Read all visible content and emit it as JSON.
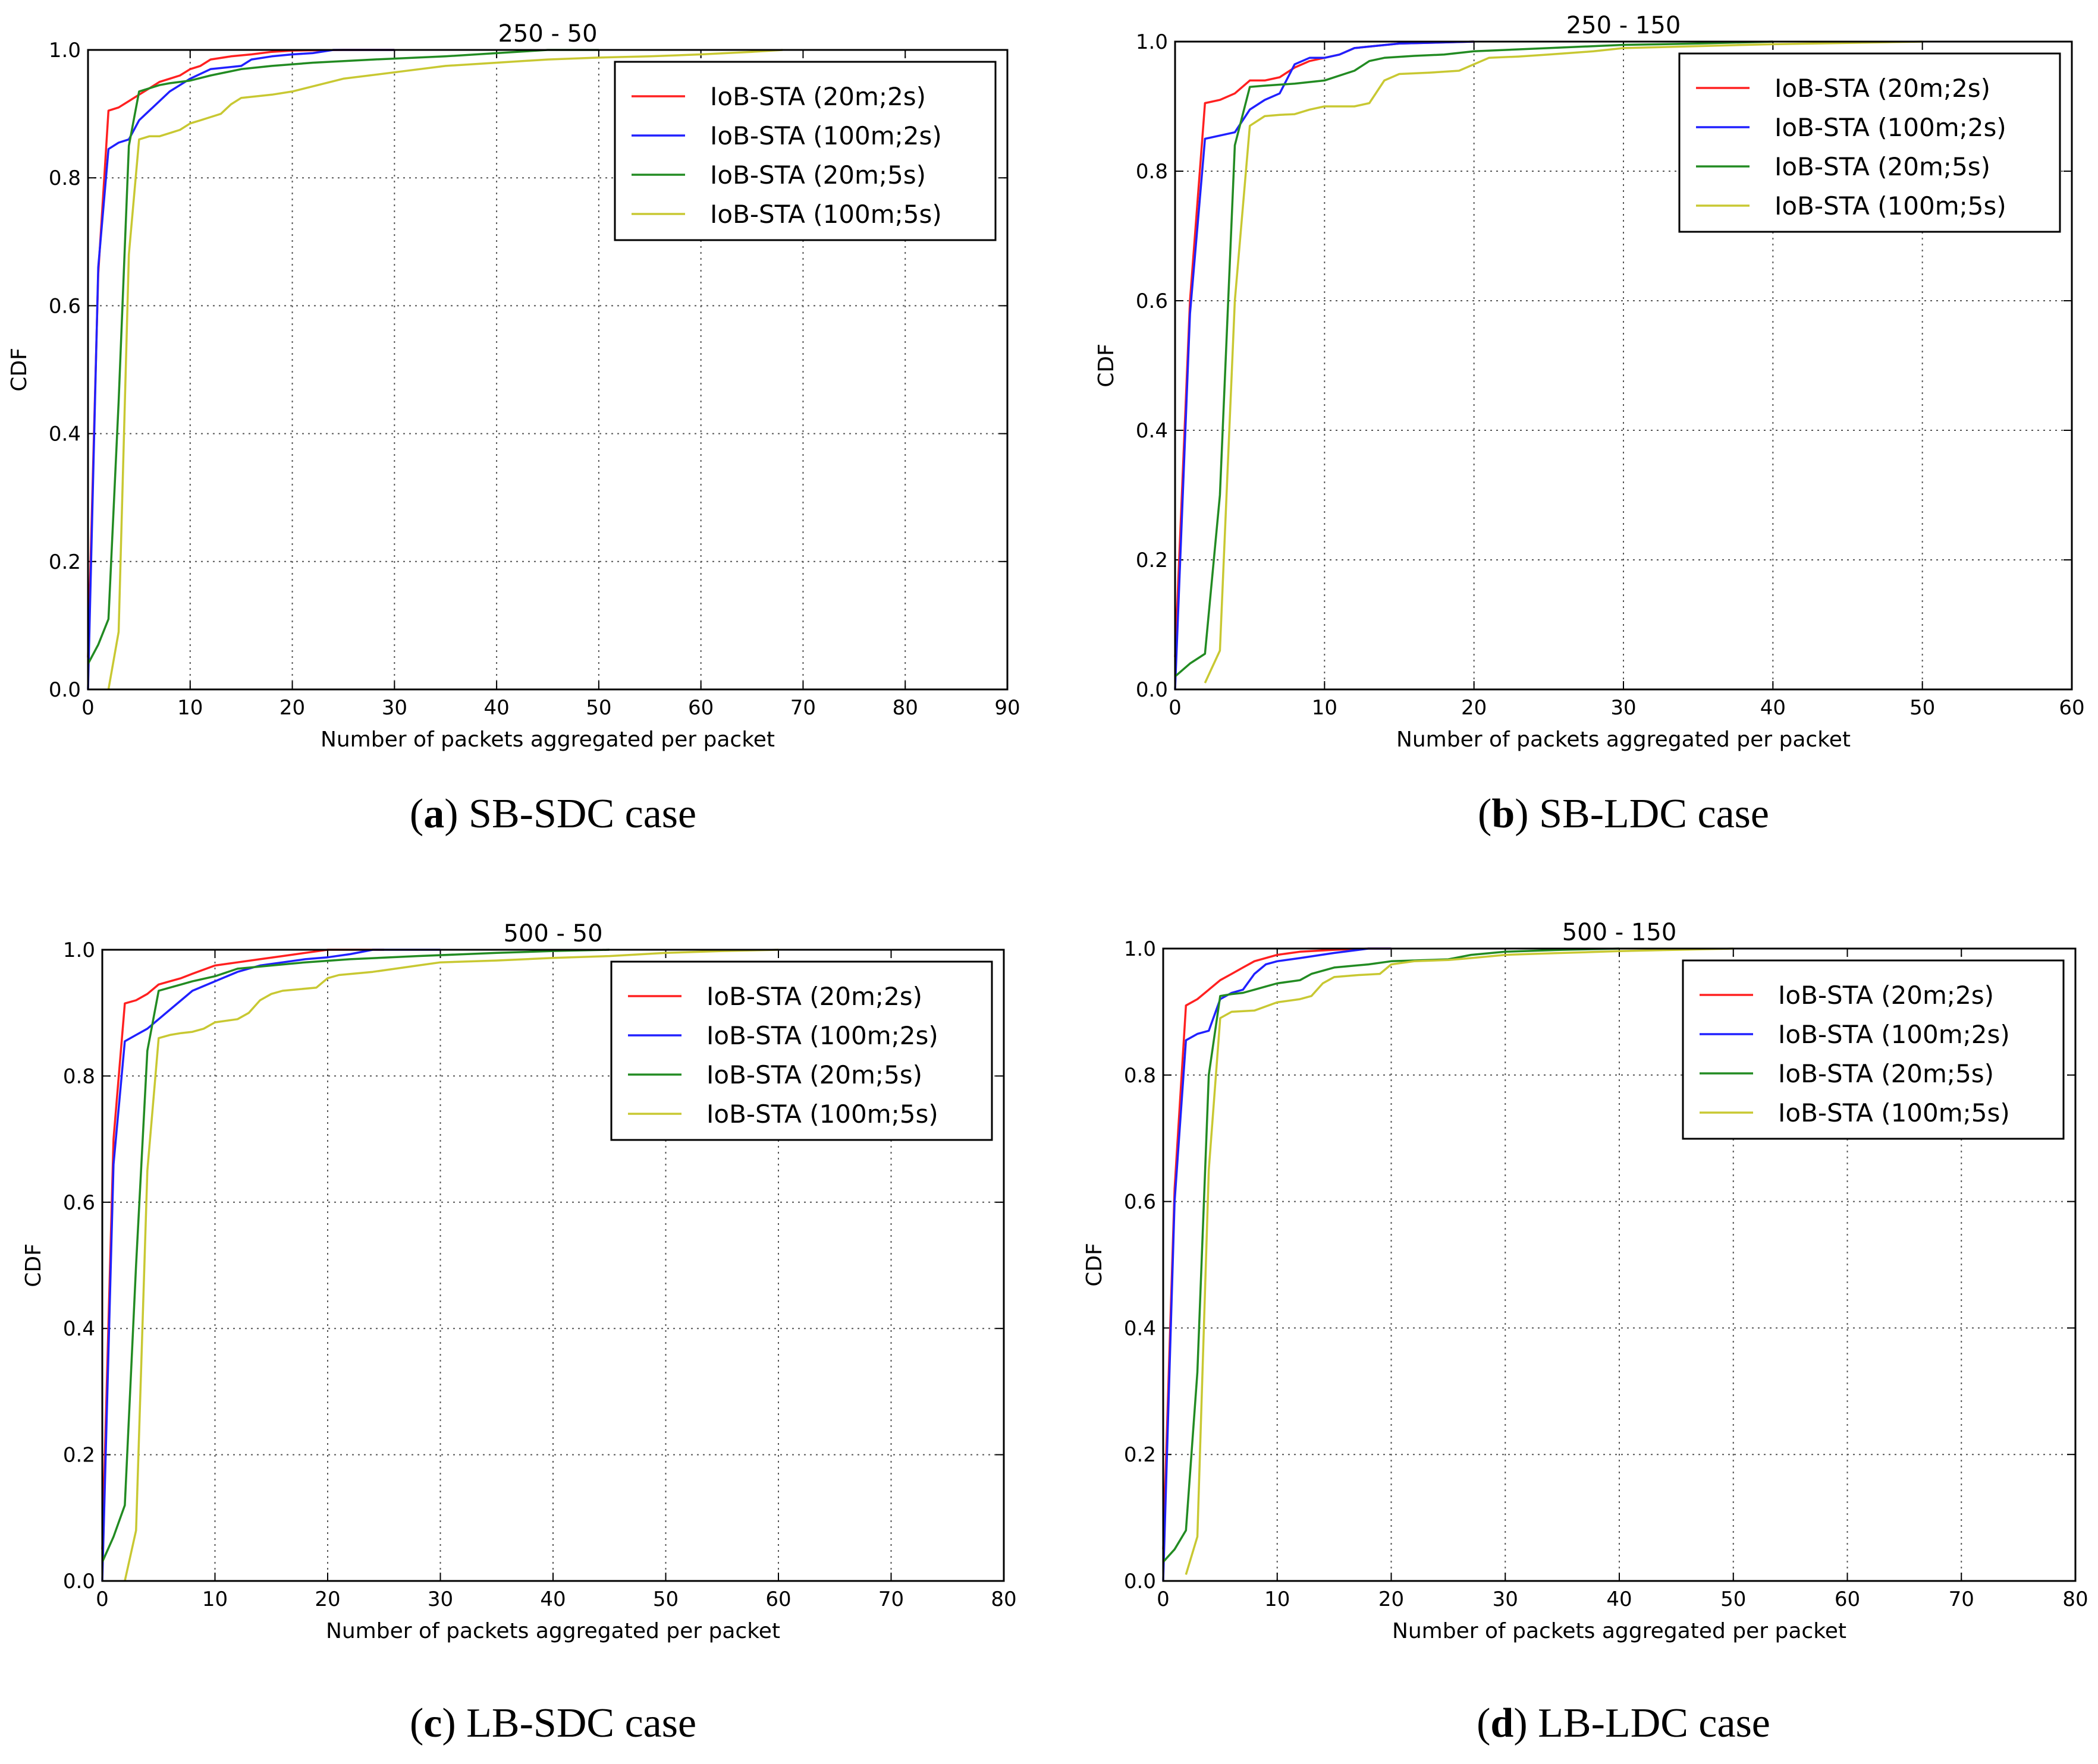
{
  "figure": {
    "colors": {
      "red": "#ff2020",
      "blue": "#2020ff",
      "green": "#228b22",
      "yellow": "#c8c832"
    },
    "legend_labels": [
      "IoB-STA (20m;2s)",
      "IoB-STA (100m;2s)",
      "IoB-STA (20m;5s)",
      "IoB-STA (100m;5s)"
    ],
    "panels": [
      {
        "caption_letter": "a",
        "caption_text": " SB-SDC case"
      },
      {
        "caption_letter": "b",
        "caption_text": " SB-LDC case"
      },
      {
        "caption_letter": "c",
        "caption_text": " LB-SDC case"
      },
      {
        "caption_letter": "d",
        "caption_text": " LB-LDC case"
      }
    ]
  },
  "chart_data": [
    {
      "type": "line",
      "title": "250 - 50",
      "xlabel": "Number of packets aggregated per packet",
      "ylabel": "CDF",
      "xlim": [
        0,
        90
      ],
      "ylim": [
        0,
        1.0
      ],
      "xticks": [
        0,
        10,
        20,
        30,
        40,
        50,
        60,
        70,
        80,
        90
      ],
      "yticks": [
        0.0,
        0.2,
        0.4,
        0.6,
        0.8,
        1.0
      ],
      "grid": true,
      "legend": "top-right",
      "series": [
        {
          "name": "IoB-STA (20m;2s)",
          "color": "#ff2020",
          "x": [
            0,
            1,
            2,
            3,
            4,
            5,
            6,
            7,
            8,
            9,
            10,
            11,
            12,
            14,
            16,
            18,
            20,
            25,
            30
          ],
          "y": [
            0.05,
            0.65,
            0.905,
            0.91,
            0.92,
            0.93,
            0.94,
            0.95,
            0.955,
            0.96,
            0.97,
            0.975,
            0.985,
            0.99,
            0.993,
            0.997,
            0.999,
            1.0,
            1.0
          ]
        },
        {
          "name": "IoB-STA (100m;2s)",
          "color": "#2020ff",
          "x": [
            0,
            1,
            2,
            3,
            4,
            5,
            6,
            7,
            8,
            9,
            10,
            12,
            15,
            16,
            18,
            20,
            22,
            24,
            30
          ],
          "y": [
            0.0,
            0.66,
            0.845,
            0.855,
            0.86,
            0.89,
            0.905,
            0.92,
            0.935,
            0.945,
            0.955,
            0.97,
            0.975,
            0.985,
            0.99,
            0.993,
            0.995,
            1.0,
            1.0
          ]
        },
        {
          "name": "IoB-STA (20m;5s)",
          "color": "#228b22",
          "x": [
            0,
            1,
            2,
            3,
            4,
            5,
            6,
            7,
            8,
            10,
            12,
            15,
            18,
            22,
            28,
            35,
            40,
            45,
            50
          ],
          "y": [
            0.04,
            0.07,
            0.11,
            0.45,
            0.85,
            0.935,
            0.94,
            0.945,
            0.948,
            0.952,
            0.96,
            0.97,
            0.975,
            0.98,
            0.985,
            0.99,
            0.995,
            1.0,
            1.0
          ]
        },
        {
          "name": "IoB-STA (100m;5s)",
          "color": "#c8c832",
          "x": [
            2,
            3,
            4,
            5,
            6,
            7,
            8,
            9,
            10,
            11,
            12,
            13,
            14,
            15,
            18,
            20,
            25,
            30,
            35,
            40,
            45,
            50,
            55,
            60,
            65,
            68
          ],
          "y": [
            0.0,
            0.09,
            0.68,
            0.86,
            0.865,
            0.865,
            0.87,
            0.875,
            0.885,
            0.89,
            0.895,
            0.9,
            0.915,
            0.925,
            0.93,
            0.935,
            0.955,
            0.965,
            0.975,
            0.98,
            0.985,
            0.988,
            0.99,
            0.993,
            0.997,
            1.0
          ]
        }
      ]
    },
    {
      "type": "line",
      "title": "250 - 150",
      "xlabel": "Number of packets aggregated per packet",
      "ylabel": "CDF",
      "xlim": [
        0,
        60
      ],
      "ylim": [
        0,
        1.0
      ],
      "xticks": [
        0,
        10,
        20,
        30,
        40,
        50,
        60
      ],
      "yticks": [
        0.0,
        0.2,
        0.4,
        0.6,
        0.8,
        1.0
      ],
      "grid": true,
      "legend": "top-right",
      "series": [
        {
          "name": "IoB-STA (20m;2s)",
          "color": "#ff2020",
          "x": [
            0,
            1,
            2,
            3,
            4,
            5,
            6,
            7,
            8,
            9,
            10,
            11,
            12,
            15,
            20
          ],
          "y": [
            0.05,
            0.6,
            0.905,
            0.91,
            0.92,
            0.94,
            0.94,
            0.945,
            0.96,
            0.97,
            0.975,
            0.98,
            0.99,
            0.997,
            1.0
          ]
        },
        {
          "name": "IoB-STA (100m;2s)",
          "color": "#2020ff",
          "x": [
            0,
            1,
            2,
            3,
            4,
            5,
            6,
            7,
            8,
            9,
            10,
            11,
            12,
            15,
            20
          ],
          "y": [
            0.0,
            0.58,
            0.85,
            0.855,
            0.86,
            0.895,
            0.91,
            0.92,
            0.965,
            0.975,
            0.975,
            0.98,
            0.99,
            0.997,
            1.0
          ]
        },
        {
          "name": "IoB-STA (20m;5s)",
          "color": "#228b22",
          "x": [
            0,
            1,
            2,
            3,
            4,
            5,
            6,
            8,
            10,
            12,
            13,
            14,
            16,
            18,
            20,
            25,
            30,
            35,
            40
          ],
          "y": [
            0.02,
            0.04,
            0.055,
            0.3,
            0.84,
            0.93,
            0.932,
            0.935,
            0.94,
            0.955,
            0.97,
            0.975,
            0.978,
            0.98,
            0.985,
            0.99,
            0.995,
            0.997,
            1.0
          ]
        },
        {
          "name": "IoB-STA (100m;5s)",
          "color": "#c8c832",
          "x": [
            2,
            3,
            4,
            5,
            6,
            7,
            8,
            9,
            10,
            12,
            13,
            14,
            15,
            17,
            19,
            21,
            23,
            25,
            28,
            30,
            35,
            40,
            45,
            50
          ],
          "y": [
            0.01,
            0.06,
            0.6,
            0.87,
            0.885,
            0.887,
            0.888,
            0.895,
            0.9,
            0.9,
            0.905,
            0.94,
            0.95,
            0.952,
            0.955,
            0.975,
            0.977,
            0.98,
            0.985,
            0.99,
            0.993,
            0.996,
            0.998,
            1.0
          ]
        }
      ]
    },
    {
      "type": "line",
      "title": "500 - 50",
      "xlabel": "Number of packets aggregated per packet",
      "ylabel": "CDF",
      "xlim": [
        0,
        80
      ],
      "ylim": [
        0,
        1.0
      ],
      "xticks": [
        0,
        10,
        20,
        30,
        40,
        50,
        60,
        70,
        80
      ],
      "yticks": [
        0.0,
        0.2,
        0.4,
        0.6,
        0.8,
        1.0
      ],
      "grid": true,
      "legend": "top-right",
      "series": [
        {
          "name": "IoB-STA (20m;2s)",
          "color": "#ff2020",
          "x": [
            0,
            1,
            2,
            3,
            4,
            5,
            6,
            7,
            8,
            10,
            12,
            14,
            16,
            18,
            20,
            25
          ],
          "y": [
            0.05,
            0.7,
            0.915,
            0.92,
            0.93,
            0.945,
            0.95,
            0.955,
            0.962,
            0.975,
            0.98,
            0.985,
            0.99,
            0.995,
            1.0,
            1.0
          ]
        },
        {
          "name": "IoB-STA (100m;2s)",
          "color": "#2020ff",
          "x": [
            0,
            1,
            2,
            3,
            4,
            5,
            6,
            7,
            8,
            10,
            12,
            14,
            16,
            18,
            20,
            22,
            24,
            30
          ],
          "y": [
            0.0,
            0.66,
            0.855,
            0.865,
            0.875,
            0.89,
            0.905,
            0.92,
            0.935,
            0.95,
            0.965,
            0.975,
            0.98,
            0.985,
            0.988,
            0.993,
            1.0,
            1.0
          ]
        },
        {
          "name": "IoB-STA (20m;5s)",
          "color": "#228b22",
          "x": [
            0,
            1,
            2,
            3,
            4,
            5,
            6,
            7,
            8,
            10,
            12,
            15,
            18,
            22,
            28,
            35,
            40,
            45
          ],
          "y": [
            0.03,
            0.07,
            0.12,
            0.5,
            0.84,
            0.935,
            0.94,
            0.945,
            0.95,
            0.958,
            0.97,
            0.975,
            0.98,
            0.985,
            0.99,
            0.995,
            0.998,
            1.0
          ]
        },
        {
          "name": "IoB-STA (100m;5s)",
          "color": "#c8c832",
          "x": [
            2,
            3,
            4,
            5,
            6,
            7,
            8,
            9,
            10,
            12,
            13,
            14,
            15,
            16,
            19,
            20,
            21,
            24,
            26,
            28,
            30,
            35,
            40,
            45,
            50,
            55,
            60
          ],
          "y": [
            0.0,
            0.08,
            0.65,
            0.86,
            0.865,
            0.868,
            0.87,
            0.875,
            0.885,
            0.89,
            0.9,
            0.92,
            0.93,
            0.935,
            0.94,
            0.955,
            0.96,
            0.965,
            0.97,
            0.975,
            0.98,
            0.983,
            0.987,
            0.99,
            0.995,
            0.998,
            1.0
          ]
        }
      ]
    },
    {
      "type": "line",
      "title": "500 - 150",
      "xlabel": "Number of packets aggregated per packet",
      "ylabel": "CDF",
      "xlim": [
        0,
        80
      ],
      "ylim": [
        0,
        1.0
      ],
      "xticks": [
        0,
        10,
        20,
        30,
        40,
        50,
        60,
        70,
        80
      ],
      "yticks": [
        0.0,
        0.2,
        0.4,
        0.6,
        0.8,
        1.0
      ],
      "grid": true,
      "legend": "top-right",
      "series": [
        {
          "name": "IoB-STA (20m;2s)",
          "color": "#ff2020",
          "x": [
            0,
            1,
            2,
            3,
            4,
            5,
            6,
            7,
            8,
            10,
            12,
            15,
            18,
            20
          ],
          "y": [
            0.05,
            0.62,
            0.91,
            0.92,
            0.935,
            0.95,
            0.96,
            0.97,
            0.98,
            0.99,
            0.995,
            0.998,
            1.0,
            1.0
          ]
        },
        {
          "name": "IoB-STA (100m;2s)",
          "color": "#2020ff",
          "x": [
            0,
            1,
            2,
            3,
            4,
            5,
            6,
            7,
            8,
            9,
            10,
            12,
            15,
            18,
            20
          ],
          "y": [
            0.0,
            0.6,
            0.855,
            0.865,
            0.87,
            0.92,
            0.93,
            0.935,
            0.96,
            0.975,
            0.98,
            0.985,
            0.993,
            1.0,
            1.0
          ]
        },
        {
          "name": "IoB-STA (20m;5s)",
          "color": "#228b22",
          "x": [
            0,
            1,
            2,
            3,
            4,
            5,
            6,
            7,
            8,
            9,
            10,
            12,
            13,
            15,
            18,
            20,
            25,
            27,
            30,
            35,
            40
          ],
          "y": [
            0.03,
            0.05,
            0.08,
            0.33,
            0.8,
            0.925,
            0.928,
            0.93,
            0.935,
            0.94,
            0.945,
            0.95,
            0.96,
            0.97,
            0.975,
            0.98,
            0.983,
            0.99,
            0.995,
            0.998,
            1.0
          ]
        },
        {
          "name": "IoB-STA (100m;5s)",
          "color": "#c8c832",
          "x": [
            2,
            3,
            4,
            5,
            6,
            8,
            10,
            12,
            13,
            14,
            15,
            17,
            19,
            20,
            22,
            25,
            27,
            30,
            35,
            40,
            45,
            50
          ],
          "y": [
            0.01,
            0.07,
            0.65,
            0.89,
            0.9,
            0.902,
            0.915,
            0.92,
            0.925,
            0.945,
            0.955,
            0.958,
            0.96,
            0.975,
            0.98,
            0.982,
            0.985,
            0.99,
            0.993,
            0.996,
            0.998,
            1.0
          ]
        }
      ]
    }
  ]
}
